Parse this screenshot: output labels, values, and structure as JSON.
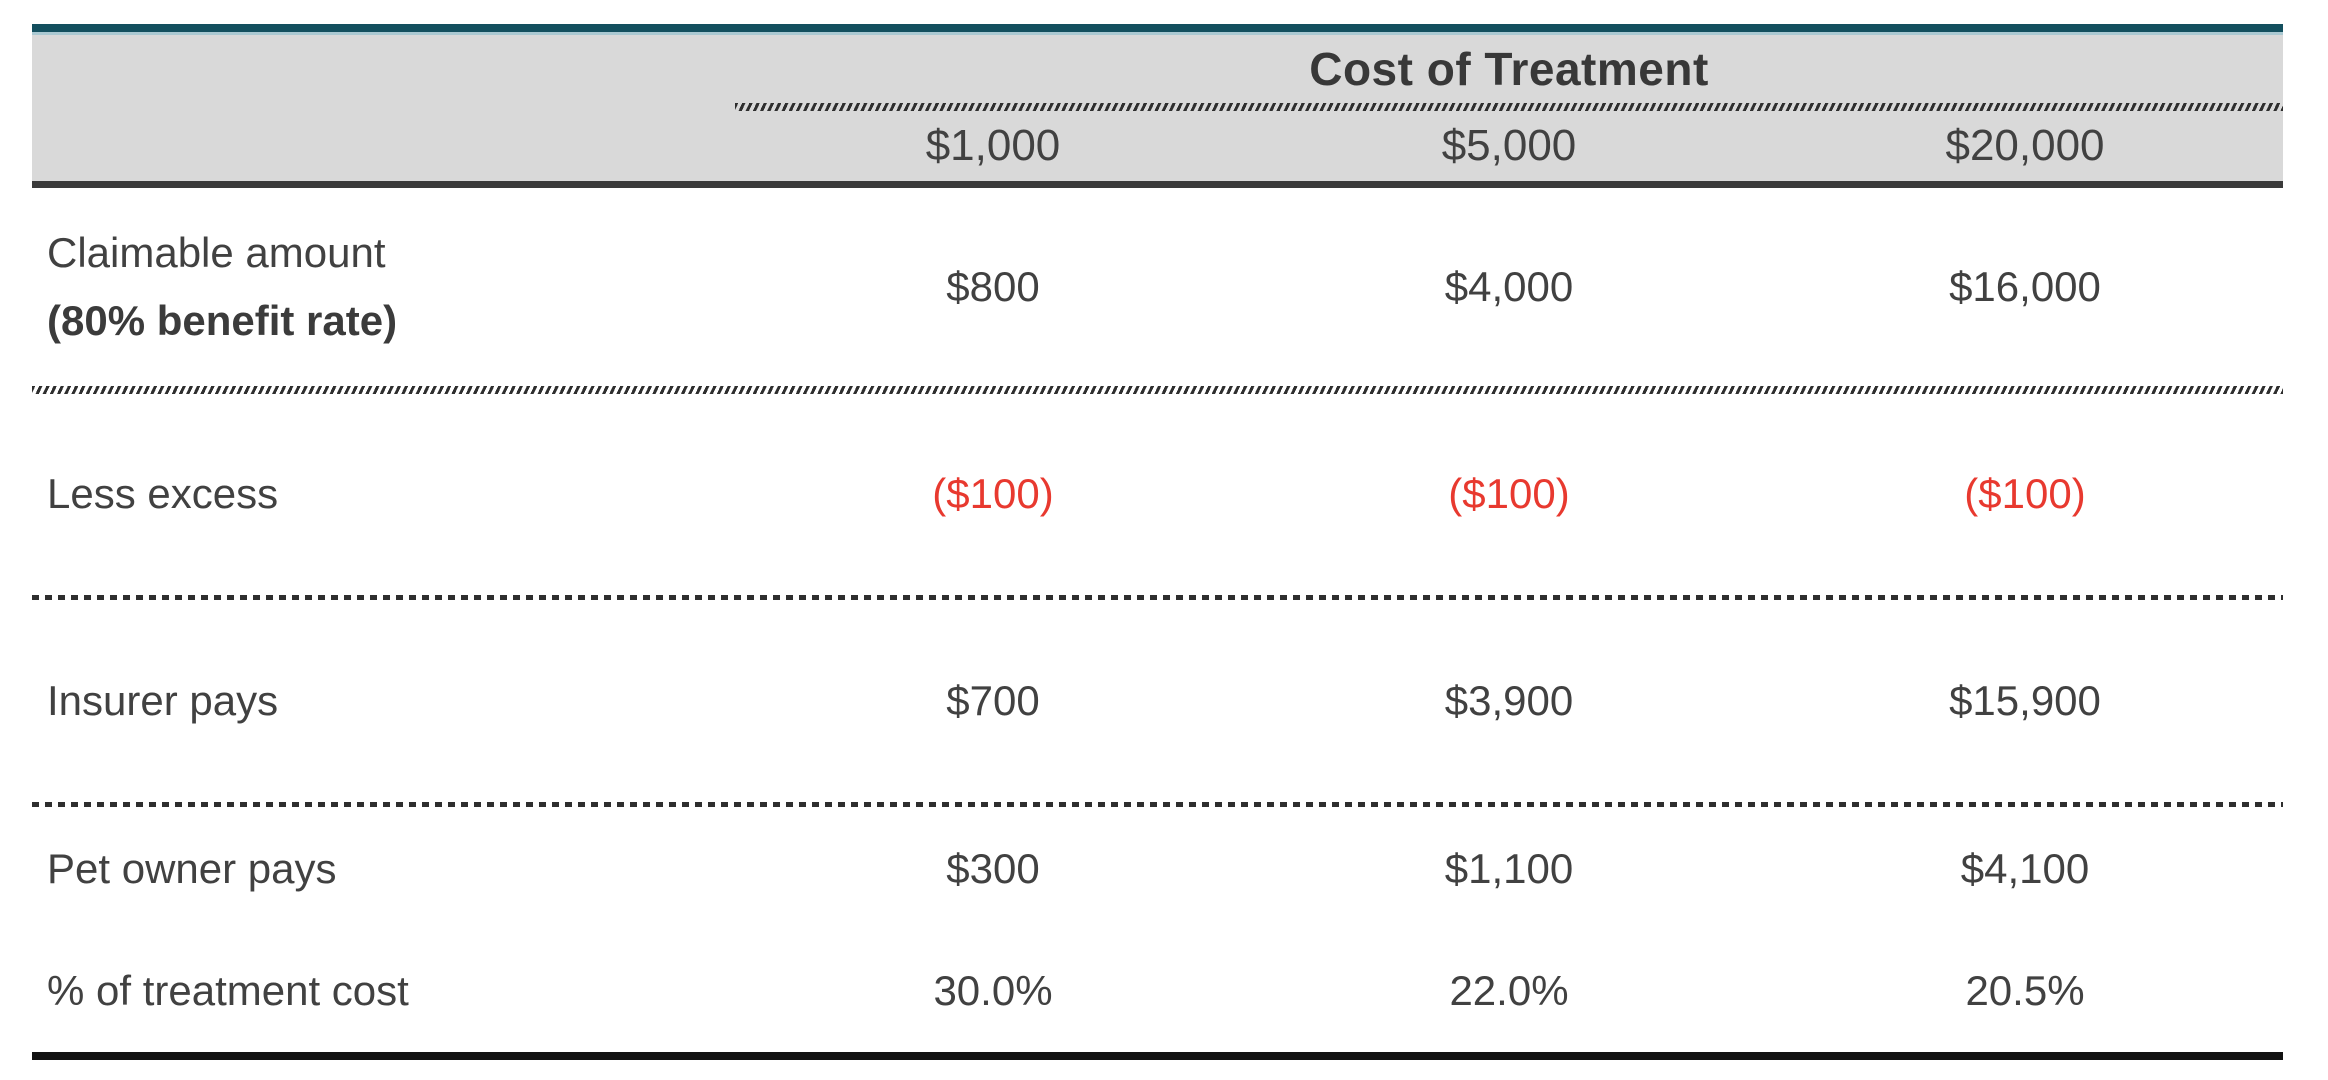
{
  "table": {
    "group_header": "Cost of Treatment",
    "columns": [
      "$1,000",
      "$5,000",
      "$20,000"
    ],
    "rows": [
      {
        "label_line1": "Claimable amount",
        "label_line2": "(80% benefit rate)",
        "values": [
          "$800",
          "$4,000",
          "$16,000"
        ]
      },
      {
        "label": "Less excess",
        "values": [
          "($100)",
          "($100)",
          "($100)"
        ],
        "value_style": "negative-red"
      },
      {
        "label": "Insurer pays",
        "values": [
          "$700",
          "$3,900",
          "$15,900"
        ]
      },
      {
        "label": "Pet owner pays",
        "values": [
          "$300",
          "$1,100",
          "$4,100"
        ]
      },
      {
        "label": "% of treatment cost",
        "values": [
          "30.0%",
          "22.0%",
          "20.5%"
        ]
      }
    ],
    "colors": {
      "accent_teal": "#134f5e",
      "header_background": "#d9d9d9",
      "body_text": "#414141",
      "negative_red": "#e8392f",
      "rule_dark": "#3a3a3a",
      "rule_black": "#121212"
    }
  }
}
